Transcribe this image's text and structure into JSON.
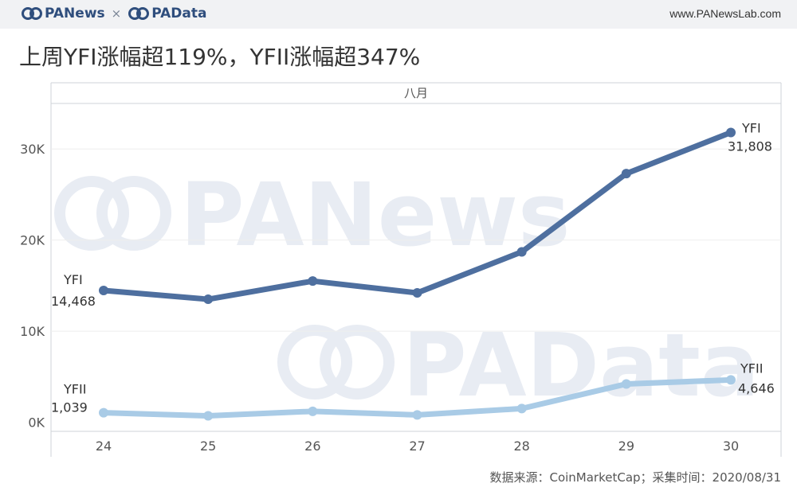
{
  "header": {
    "brand_left": "PANews",
    "brand_sep": "×",
    "brand_right": "PAData",
    "site": "www.PANewsLab.com"
  },
  "title": "上周YFI涨幅超119%，YFII涨幅超347%",
  "source": "数据来源：CoinMarketCap；采集时间：2020/08/31",
  "watermarks": [
    "PANews",
    "PAData"
  ],
  "colors": {
    "yfi": "#4e6f9f",
    "yfii": "#a9cbe6",
    "axis": "#cfd3d8",
    "grid": "#eeeeee"
  },
  "chart_data": {
    "type": "line",
    "x_header": "八月",
    "categories": [
      "24",
      "25",
      "26",
      "27",
      "28",
      "29",
      "30"
    ],
    "y_ticks": [
      "0K",
      "10K",
      "20K",
      "30K"
    ],
    "y_tick_values": [
      0,
      10000,
      20000,
      30000
    ],
    "ylim": [
      -1000,
      35000
    ],
    "grid": true,
    "series": [
      {
        "name": "YFI",
        "values": [
          14468,
          13500,
          15500,
          14200,
          18700,
          27300,
          31808
        ],
        "start_label": {
          "name": "YFI",
          "value": "14,468"
        },
        "end_label": {
          "name": "YFI",
          "value": "31,808"
        }
      },
      {
        "name": "YFII",
        "values": [
          1039,
          700,
          1200,
          800,
          1500,
          4200,
          4646
        ],
        "start_label": {
          "name": "YFII",
          "value": "1,039"
        },
        "end_label": {
          "name": "YFII",
          "value": "4,646"
        }
      }
    ]
  }
}
